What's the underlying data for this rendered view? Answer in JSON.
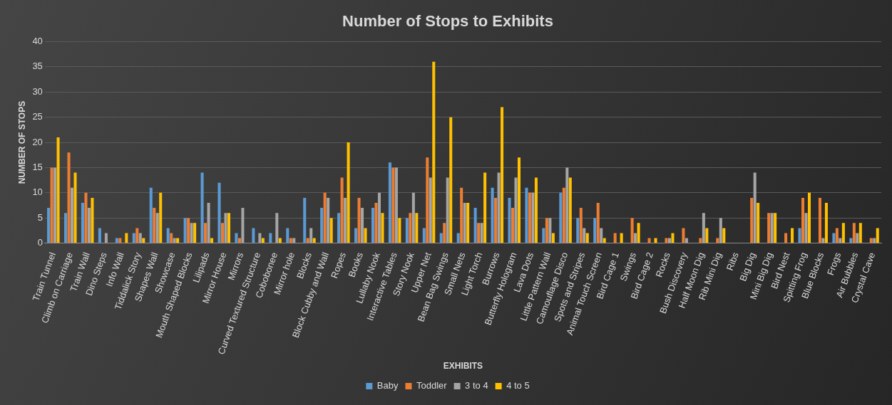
{
  "chart_data": {
    "type": "bar",
    "title": "Number of Stops to Exhibits",
    "xlabel": "EXHIBITS",
    "ylabel": "NUMBER OF STOPS",
    "categories": [
      "Train Tunnel",
      "Climb on Carriage",
      "Train Wall",
      "Dino Steps",
      "Info Wall",
      "Tiddalick Story",
      "Shapes Wall",
      "Showcase",
      "Mouth Shaped Blocks",
      "Lilipads",
      "Mirror House",
      "Mirrors",
      "Curved Textured Structure",
      "Cobobonee",
      "Mirror hole",
      "Blocks",
      "Block Cubby and Wall",
      "Ropes",
      "Books",
      "Lullaby Nook",
      "Interactive Tables",
      "Story Nook",
      "Upper Net",
      "Bean Bag Swings",
      "Small Nets",
      "Light Torch",
      "Burrows",
      "Butterfly Hologram",
      "Lava Dots",
      "Little Pattern Wall",
      "Camouflage Disco",
      "Spots and Stripes",
      "Animal Touch Screen",
      "Bird Cage 1",
      "Swings",
      "Bird Cage 2",
      "Rocks",
      "Bush Discovery",
      "Half Moon Dig",
      "Rib Mini Dig",
      "Ribs",
      "Big Dig",
      "Mini Big Dig",
      "Bird Nest",
      "Spitting Frog",
      "Blue Blocks",
      "Frogs",
      "Air Bubbles",
      "Crystal Cave"
    ],
    "series": [
      {
        "name": "Baby",
        "color": "#5b9bd5",
        "values": [
          7,
          6,
          8,
          3,
          1,
          2,
          11,
          3,
          5,
          14,
          12,
          2,
          3,
          2,
          3,
          9,
          7,
          6,
          3,
          7,
          16,
          5,
          3,
          2,
          2,
          7,
          11,
          9,
          11,
          3,
          10,
          5,
          5,
          0,
          0,
          0,
          0,
          0,
          0,
          0,
          0,
          0,
          0,
          0,
          3,
          0,
          2,
          1,
          0
        ]
      },
      {
        "name": "Toddler",
        "color": "#ed7d31",
        "values": [
          15,
          18,
          10,
          0,
          1,
          3,
          7,
          2,
          5,
          4,
          4,
          1,
          0,
          0,
          1,
          1,
          10,
          13,
          9,
          8,
          15,
          6,
          17,
          4,
          11,
          4,
          9,
          7,
          10,
          5,
          11,
          7,
          8,
          2,
          5,
          1,
          1,
          3,
          1,
          1,
          0,
          9,
          6,
          2,
          9,
          9,
          3,
          4,
          1
        ]
      },
      {
        "name": "3 to 4",
        "color": "#a5a5a5",
        "values": [
          15,
          11,
          7,
          2,
          0,
          2,
          6,
          1,
          4,
          8,
          6,
          7,
          2,
          6,
          1,
          3,
          9,
          9,
          7,
          10,
          15,
          10,
          13,
          13,
          8,
          4,
          14,
          13,
          10,
          5,
          15,
          3,
          3,
          0,
          2,
          0,
          1,
          1,
          6,
          5,
          0,
          14,
          6,
          0,
          6,
          1,
          1,
          2,
          1
        ]
      },
      {
        "name": "4 to 5",
        "color": "#ffc000",
        "values": [
          21,
          14,
          9,
          0,
          2,
          1,
          10,
          1,
          4,
          1,
          6,
          0,
          1,
          1,
          0,
          1,
          5,
          20,
          3,
          6,
          5,
          6,
          36,
          25,
          8,
          14,
          27,
          17,
          13,
          2,
          13,
          2,
          1,
          2,
          4,
          1,
          2,
          0,
          3,
          3,
          0,
          8,
          6,
          3,
          10,
          8,
          4,
          4,
          3
        ]
      }
    ],
    "ylim": [
      0,
      40
    ],
    "yticks": [
      0,
      5,
      10,
      15,
      20,
      25,
      30,
      35,
      40
    ],
    "grid": "y",
    "legend": "bottom"
  }
}
